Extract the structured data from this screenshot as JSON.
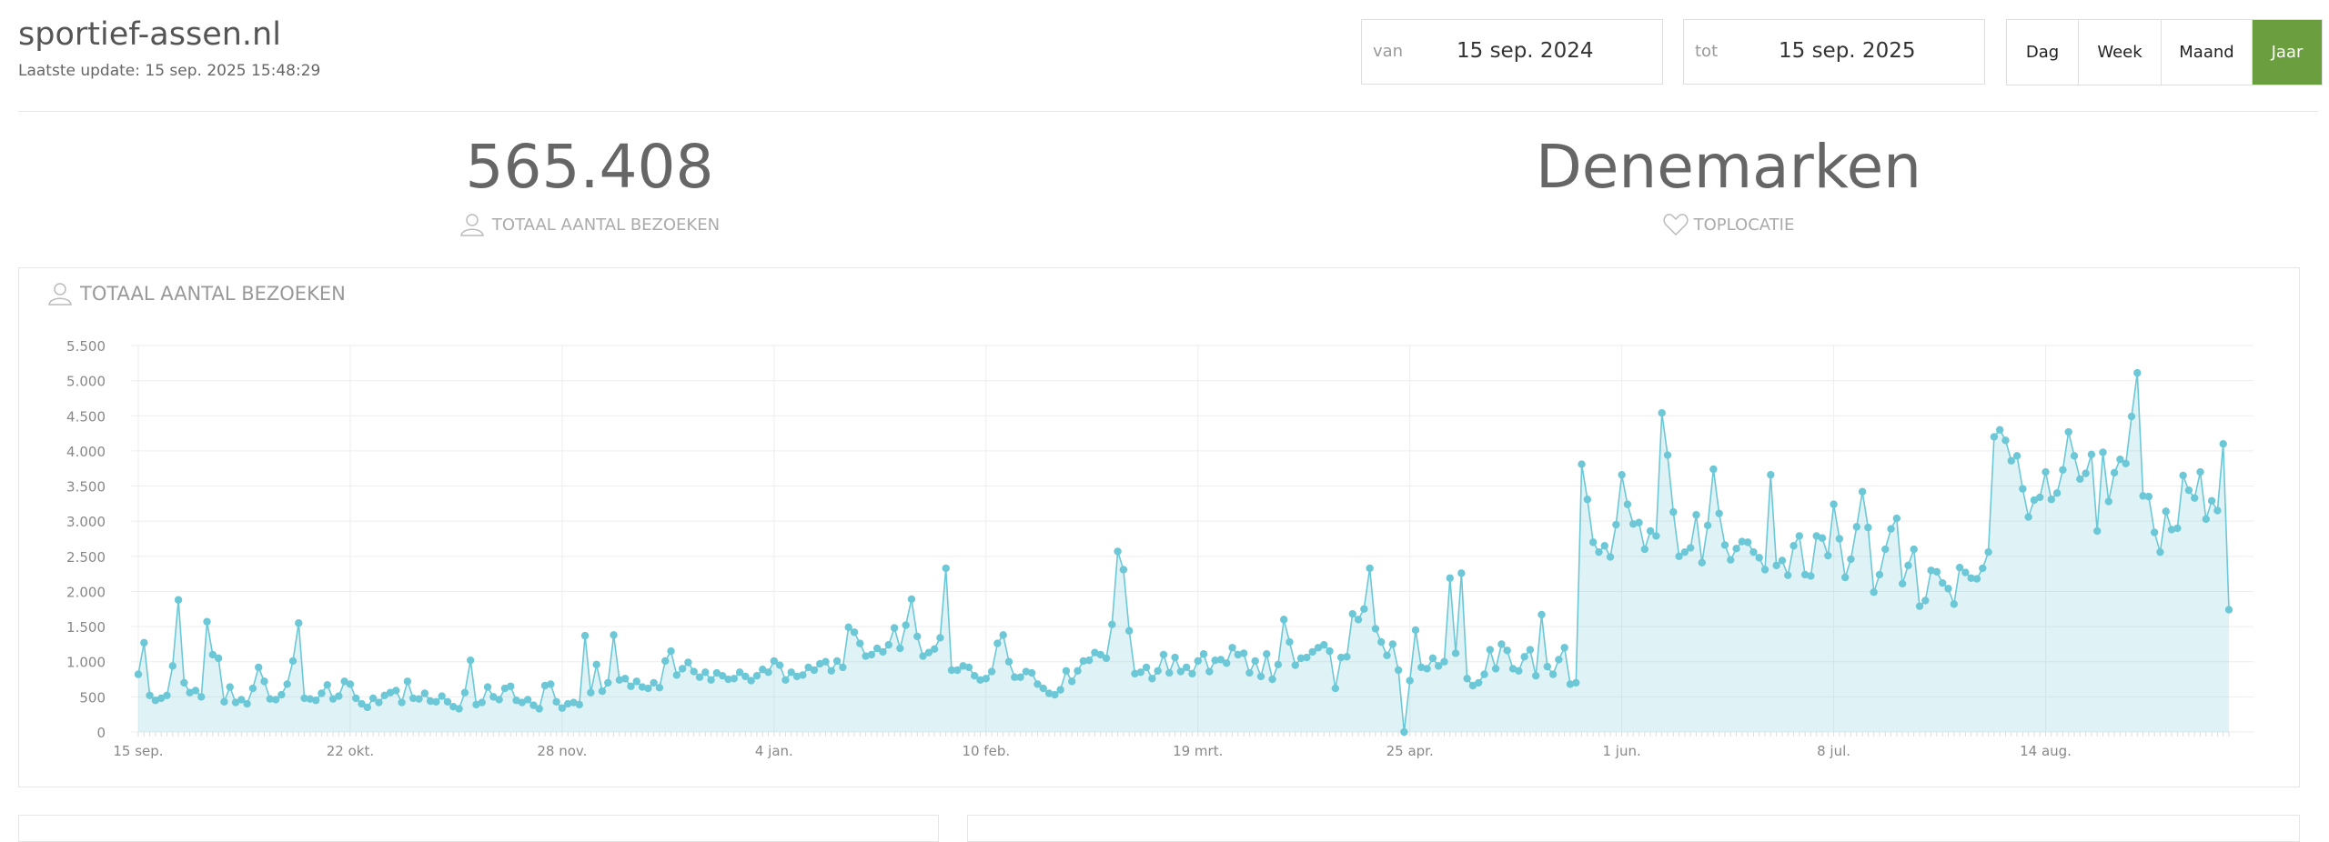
{
  "header": {
    "title": "sportief-assen.nl",
    "last_update": "Laatste update: 15 sep. 2025 15:48:29"
  },
  "date_range": {
    "from_label": "van",
    "from": "15 sep. 2024",
    "to_label": "tot",
    "to": "15 sep. 2025"
  },
  "period_buttons": [
    "Dag",
    "Week",
    "Maand",
    "Jaar"
  ],
  "stats": [
    {
      "value": "565.408",
      "label": "TOTAAL AANTAL BEZOEKEN"
    },
    {
      "value": "Denemarken",
      "label": "TOPLOCATIE"
    }
  ],
  "chart_data": {
    "type": "area",
    "title": "TOTAAL AANTAL BEZOEKEN",
    "color": "#6cc8d6",
    "grid": true,
    "ylim": [
      0,
      5500
    ],
    "yticks": [
      0,
      500,
      {
        "value": 1000,
        "label": "1.000"
      },
      {
        "value": 1500,
        "label": "1.500"
      },
      {
        "value": 2000,
        "label": "2.000"
      },
      {
        "value": 2500,
        "label": "2.500"
      },
      {
        "value": 3000,
        "label": "3.000"
      },
      {
        "value": 3500,
        "label": "3.500"
      },
      {
        "value": 4000,
        "label": "4.000"
      },
      {
        "value": 4500,
        "label": "4.500"
      },
      {
        "value": 5000,
        "label": "5.000"
      },
      {
        "value": 5500,
        "label": "5.500"
      }
    ],
    "categories": [
      "15 sep.",
      null,
      null,
      null,
      null,
      null,
      null,
      null,
      null,
      null,
      null,
      null,
      null,
      null,
      null,
      null,
      null,
      null,
      null,
      null,
      null,
      null,
      null,
      null,
      null,
      null,
      null,
      null,
      null,
      null,
      null,
      null,
      null,
      null,
      null,
      null,
      null,
      "22 okt.",
      null,
      null,
      null,
      null,
      null,
      null,
      null,
      null,
      null,
      null,
      null,
      null,
      null,
      null,
      null,
      null,
      null,
      null,
      null,
      null,
      null,
      null,
      null,
      null,
      null,
      null,
      null,
      null,
      null,
      null,
      null,
      null,
      null,
      null,
      null,
      null,
      "28 nov.",
      null,
      null,
      null,
      null,
      null,
      null,
      null,
      null,
      null,
      null,
      null,
      null,
      null,
      null,
      null,
      null,
      null,
      null,
      null,
      null,
      null,
      null,
      null,
      null,
      null,
      null,
      null,
      null,
      null,
      null,
      null,
      null,
      null,
      null,
      null,
      null,
      "4 jan.",
      null,
      null,
      null,
      null,
      null,
      null,
      null,
      null,
      null,
      null,
      null,
      null,
      null,
      null,
      null,
      null,
      null,
      null,
      null,
      null,
      null,
      null,
      null,
      null,
      null,
      null,
      null,
      null,
      null,
      null,
      null,
      null,
      null,
      null,
      null,
      null,
      "10 feb.",
      null,
      null,
      null,
      null,
      null,
      null,
      null,
      null,
      null,
      null,
      null,
      null,
      null,
      null,
      null,
      null,
      null,
      null,
      null,
      null,
      null,
      null,
      null,
      null,
      null,
      null,
      null,
      null,
      null,
      null,
      null,
      null,
      null,
      null,
      null,
      null,
      "19 mrt.",
      null,
      null,
      null,
      null,
      null,
      null,
      null,
      null,
      null,
      null,
      null,
      null,
      null,
      null,
      null,
      null,
      null,
      null,
      null,
      null,
      null,
      null,
      null,
      null,
      null,
      null,
      null,
      null,
      null,
      null,
      null,
      null,
      null,
      null,
      null,
      null,
      "25 apr.",
      null,
      null,
      null,
      null,
      null,
      null,
      null,
      null,
      null,
      null,
      null,
      null,
      null,
      null,
      null,
      null,
      null,
      null,
      null,
      null,
      null,
      null,
      null,
      null,
      null,
      null,
      null,
      null,
      null,
      null,
      null,
      null,
      null,
      null,
      null,
      null,
      "1 jun.",
      null,
      null,
      null,
      null,
      null,
      null,
      null,
      null,
      null,
      null,
      null,
      null,
      null,
      null,
      null,
      null,
      null,
      null,
      null,
      null,
      null,
      null,
      null,
      null,
      null,
      null,
      null,
      null,
      null,
      null,
      null,
      null,
      null,
      null,
      null,
      null,
      "8 jul.",
      null,
      null,
      null,
      null,
      null,
      null,
      null,
      null,
      null,
      null,
      null,
      null,
      null,
      null,
      null,
      null,
      null,
      null,
      null,
      null,
      null,
      null,
      null,
      null,
      null,
      null,
      null,
      null,
      null,
      null,
      null,
      null,
      null,
      null,
      null,
      null,
      "14 aug.",
      null,
      null,
      null,
      null,
      null,
      null,
      null,
      null,
      null,
      null,
      null,
      null,
      null,
      null,
      null,
      null,
      null,
      null,
      null,
      null,
      null,
      null,
      null,
      null,
      null,
      null,
      null,
      null,
      null,
      null,
      null,
      null
    ],
    "values": [
      820,
      1270,
      520,
      450,
      480,
      520,
      940,
      1880,
      700,
      560,
      590,
      500,
      1570,
      1100,
      1050,
      430,
      640,
      420,
      460,
      400,
      620,
      920,
      720,
      470,
      460,
      530,
      680,
      1010,
      1550,
      480,
      470,
      450,
      550,
      670,
      470,
      510,
      720,
      680,
      480,
      400,
      350,
      480,
      420,
      520,
      560,
      590,
      420,
      720,
      480,
      470,
      550,
      440,
      430,
      510,
      430,
      360,
      330,
      560,
      1020,
      390,
      420,
      640,
      500,
      460,
      620,
      650,
      450,
      420,
      460,
      380,
      330,
      660,
      680,
      430,
      340,
      400,
      420,
      390,
      1370,
      560,
      960,
      580,
      700,
      1380,
      740,
      760,
      650,
      720,
      640,
      620,
      700,
      630,
      1010,
      1150,
      810,
      900,
      990,
      860,
      780,
      850,
      740,
      840,
      800,
      750,
      760,
      850,
      790,
      730,
      800,
      890,
      850,
      1010,
      950,
      740,
      850,
      790,
      810,
      920,
      880,
      970,
      1000,
      870,
      1010,
      920,
      1490,
      1420,
      1260,
      1080,
      1100,
      1190,
      1140,
      1240,
      1480,
      1190,
      1520,
      1890,
      1360,
      1080,
      1130,
      1180,
      1340,
      2330,
      880,
      880,
      940,
      920,
      800,
      740,
      760,
      860,
      1260,
      1380,
      1000,
      780,
      780,
      860,
      840,
      680,
      620,
      550,
      530,
      600,
      870,
      720,
      870,
      1010,
      1020,
      1130,
      1100,
      1050,
      1530,
      2570,
      2310,
      1440,
      830,
      850,
      920,
      760,
      870,
      1100,
      840,
      1060,
      860,
      920,
      830,
      1010,
      1110,
      860,
      1020,
      1030,
      980,
      1200,
      1100,
      1120,
      840,
      1010,
      790,
      1110,
      750,
      960,
      1600,
      1280,
      950,
      1050,
      1060,
      1140,
      1200,
      1240,
      1150,
      620,
      1060,
      1070,
      1680,
      1600,
      1750,
      2330,
      1470,
      1280,
      1090,
      1250,
      880,
      0,
      730,
      1450,
      920,
      900,
      1050,
      940,
      1000,
      2190,
      1120,
      2260,
      760,
      660,
      700,
      820,
      1170,
      900,
      1250,
      1160,
      900,
      870,
      1070,
      1170,
      800,
      1670,
      930,
      820,
      1030,
      1200,
      680,
      700,
      3810,
      3310,
      2700,
      2560,
      2650,
      2490,
      2950,
      3660,
      3240,
      2960,
      2980,
      2600,
      2860,
      2790,
      4540,
      3940,
      3130,
      2500,
      2560,
      2620,
      3090,
      2410,
      2940,
      3740,
      3110,
      2660,
      2450,
      2610,
      2710,
      2700,
      2560,
      2480,
      2310,
      3660,
      2370,
      2440,
      2230,
      2650,
      2790,
      2240,
      2220,
      2790,
      2760,
      2510,
      3240,
      2750,
      2200,
      2460,
      2920,
      3420,
      2910,
      1990,
      2240,
      2600,
      2890,
      3040,
      2110,
      2370,
      2600,
      1790,
      1870,
      2300,
      2280,
      2120,
      2040,
      1820,
      2340,
      2270,
      2190,
      2180,
      2330,
      2560,
      4200,
      4300,
      4150,
      3860,
      3930,
      3460,
      3060,
      3300,
      3340,
      3700,
      3310,
      3400,
      3730,
      4270,
      3930,
      3600,
      3680,
      3950,
      2860,
      3980,
      3280,
      3690,
      3880,
      3820,
      4490,
      5110,
      3360,
      3350,
      2840,
      2560,
      3140,
      2880,
      2900,
      3650,
      3440,
      3330,
      3700,
      3030,
      3290,
      3150,
      4100,
      1740
    ]
  }
}
